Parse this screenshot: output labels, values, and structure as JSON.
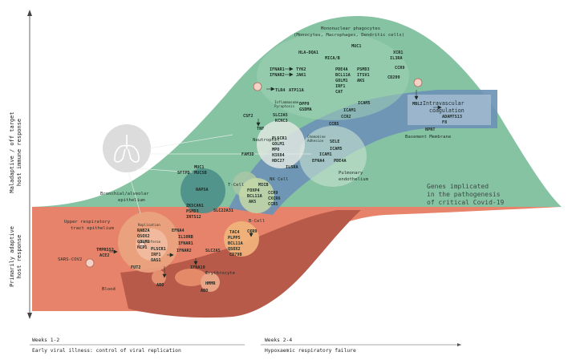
{
  "axis": {
    "top_line1": "Maladaptive / off target",
    "top_line2": "host immune response",
    "bottom_line1": "Primarily adaptive",
    "bottom_line2": "host response"
  },
  "timeline": {
    "left_label": "Weeks 1-2",
    "left_caption": "Early viral illness: control of viral replication",
    "right_label": "Weeks 2-4",
    "right_caption": "Hypoxaemic respiratory failure"
  },
  "legend_title": [
    "Genes implicated",
    "in the pathogenesis",
    "of critical Covid-19"
  ],
  "regions": {
    "mononuclear_line1": "Mononuclear phagocytes",
    "mononuclear_line2": "(Monocytes, Macrophages, Dendritic cells)",
    "intravascular_line1": "Intravascular",
    "intravascular_line2": "coagulation",
    "basement_membrane": "Basement Membrane",
    "pulmonary_line1": "Pulmonary",
    "pulmonary_line2": "endothelium",
    "bronchial_line1": "Bronchial/alveolar",
    "bronchial_line2": "epithelium",
    "upper_line1": "Upper respiratory",
    "upper_line2": "tract epithelium",
    "neutrophil": "Neutrophil",
    "t_cell": "T-Cell",
    "nk_cell": "NK Cell",
    "b_cell": "B-Cell",
    "erythrocyte": "Erythrocyte",
    "blood": "Blood",
    "sars": "SARS-COV2",
    "inflammasome_line1": "Inflammasome",
    "inflammasome_line2": "Pyroptosis",
    "chemokine_line1": "Chemokine",
    "chemokine_line2": "Adhesion",
    "replication": "Replication",
    "interferon": "Interferon"
  },
  "genes": {
    "MUC1": "MUC1",
    "XCR1": "XCR1",
    "IL3RA": "IL3RA",
    "CCR9": "CCR9",
    "HLA": "HLA-DQA1",
    "MICAB": "MICA/B",
    "IFNAR1": "IFNAR1",
    "TYK2": "TYK2",
    "IFNAR2": "IFNAR2",
    "JAK1": "JAK1",
    "PDE4A": "PDE4A",
    "BCL11A": "BCL11A",
    "GOLM1": "GOLM1",
    "IRF1": "IRF1",
    "CAT": "CAT",
    "PSMD3": "PSMD3",
    "ITSV1": "ITSV1",
    "AKS": "AKS",
    "CD209": "CD209",
    "TLR4": "TLR4",
    "ATP11A": "ATP11A",
    "DPP9": "DPP9",
    "GSDMA": "GSDMA",
    "ICAM5": "ICAM5",
    "ICAM1": "ICAM1",
    "CCR2": "CCR2",
    "MBL2": "MBL2",
    "ADAMTS13": "ADAMTS13",
    "F8": "F8",
    "CSF2": "CSF2",
    "TNF": "TNF",
    "SLC2A5": "SLC2A5",
    "KCNC3": "KCNC3",
    "CCR5": "CCR5",
    "NPNT": "NPNT",
    "PLSCR1": "PLSCR1",
    "GOLM1b": "GOLM1",
    "MPO": "MPO",
    "H3X84": "H3X84",
    "HDC27": "HDC27",
    "SELE": "SELE",
    "ICAM5b": "ICAM5",
    "ICAM1b": "ICAM1",
    "EFNA4": "EFNA4",
    "PDE4Ab": "PDE4A",
    "FAM3D": "FAM3D",
    "IL5RA": "IL5RA",
    "MUC1b": "MUC1",
    "MUC5B": "MUC5B",
    "SFTPD": "SFTPD",
    "NAPSA": "NAPSA",
    "ZKSCAN1": "ZKSCAN1",
    "PSMD3b": "PSMD3",
    "INTS12": "INTS12",
    "SLC22A31": "SLC22A31",
    "MICB": "MICB",
    "FOXP4": "FOXP4",
    "BCL11Ab": "BCL11A",
    "AK5": "AK5",
    "CCR9b": "CCR9",
    "CXCR6": "CXCR6",
    "CCR5b": "CCR5",
    "RAB2A": "RAB2A",
    "QSOX2": "QSOX2",
    "GOLM1c": "GOLM1",
    "HIP1": "HIP1",
    "TMPRSS2": "TMPRSS2",
    "ACE2": "ACE2",
    "PLSCR1b": "PLSCR1",
    "IRF1b": "IRF1",
    "OAS1": "OAS1",
    "EFNA4b": "EFNA4",
    "IL10RB": "IL10RB",
    "IFNAR1b": "IFNAR1",
    "IFNAR2b": "IFNAR2",
    "IFNA10": "IFNA10",
    "SLC2A5b": "SLC2A5",
    "CCR9c": "CCR9",
    "TAC4": "TAC4",
    "PLPP5": "PLPP5",
    "BCL11Ac": "BCL11A",
    "QSOX2b": "QSOX2",
    "CD79B": "CD79B",
    "FUT2": "FUT2",
    "ABO": "ABO",
    "HMMR": "HMMR",
    "ABOb": "ABO"
  }
}
